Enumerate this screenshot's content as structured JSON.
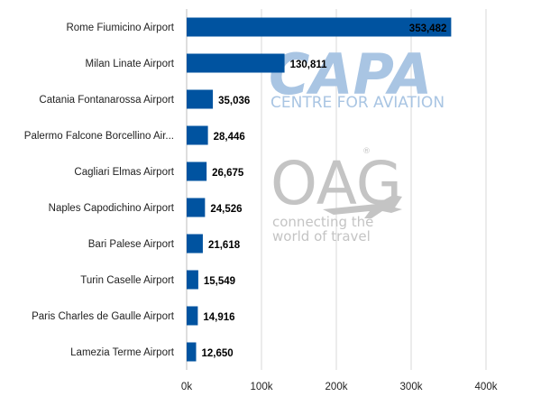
{
  "chart_data": {
    "type": "bar",
    "orientation": "horizontal",
    "title": "",
    "xlabel": "",
    "ylabel": "",
    "xlim": [
      0,
      420000
    ],
    "grid": true,
    "bar_color": "#0053a0",
    "categories": [
      "Rome Fiumicino Airport",
      "Milan Linate Airport",
      "Catania Fontanarossa Airport",
      "Palermo Falcone Borcellino Air...",
      "Cagliari Elmas Airport",
      "Naples Capodichino Airport",
      "Bari Palese Airport",
      "Turin Caselle Airport",
      "Paris Charles de Gaulle Airport",
      "Lamezia Terme Airport"
    ],
    "values": [
      353482,
      130811,
      35036,
      28446,
      26675,
      24526,
      21618,
      15549,
      14916,
      12650
    ],
    "value_labels": [
      "353,482",
      "130,811",
      "35,036",
      "28,446",
      "26,675",
      "24,526",
      "21,618",
      "15,549",
      "14,916",
      "12,650"
    ],
    "x_ticks": [
      0,
      100000,
      200000,
      300000,
      400000
    ],
    "x_tick_labels": [
      "0k",
      "100k",
      "200k",
      "300k",
      "400k"
    ]
  },
  "watermarks": {
    "capa_logo": "CAPA",
    "capa_sub": "CENTRE FOR AVIATION",
    "oag_logo": "OAG",
    "oag_sub_1": "connecting the",
    "oag_sub_2": "world of travel"
  }
}
